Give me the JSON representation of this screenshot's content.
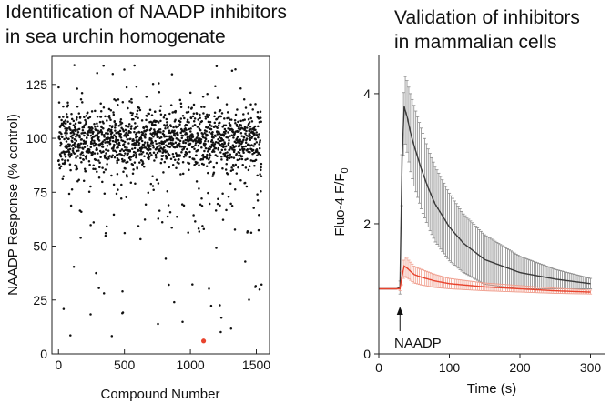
{
  "left_panel": {
    "title_line1": "Identification of NAADP inhibitors",
    "title_line2": "in sea urchin homogenate"
  },
  "right_panel": {
    "title_line1": "Validation of inhibitors",
    "title_line2": "in mammalian cells"
  },
  "chart_data": [
    {
      "type": "scatter",
      "title": "Identification of NAADP inhibitors in sea urchin homogenate",
      "xlabel": "Compound Number",
      "ylabel": "NAADP Response (% control)",
      "xlim": [
        -50,
        1600
      ],
      "ylim": [
        0,
        138
      ],
      "x_ticks": [
        0,
        500,
        1000,
        1500
      ],
      "y_ticks": [
        0,
        25,
        50,
        75,
        100,
        125
      ],
      "grid": false,
      "n_points": 1550,
      "point_color": "#111111",
      "main_cluster": {
        "center": 100,
        "spread": 7
      },
      "range_observed": [
        5,
        136
      ],
      "highlight": {
        "x": 1100,
        "y": 6,
        "color": "#e8432d"
      }
    },
    {
      "type": "line",
      "title": "Validation of inhibitors in mammalian cells",
      "xlabel": "Time (s)",
      "ylabel_main": "Fluo-4 F/F",
      "ylabel_sub": "0",
      "xlim": [
        0,
        320
      ],
      "ylim": [
        0,
        4.6
      ],
      "x_ticks": [
        0,
        100,
        200,
        300
      ],
      "y_ticks": [
        0,
        2,
        4
      ],
      "grid": false,
      "annotation": {
        "text": "NAADP",
        "x": 30
      },
      "series": [
        {
          "color": "#3a3a3a",
          "err_color": "#8a8a8a",
          "x": [
            0,
            25,
            30,
            33,
            36,
            40,
            45,
            50,
            60,
            70,
            80,
            100,
            120,
            150,
            200,
            250,
            300
          ],
          "y": [
            1.0,
            1.0,
            1.02,
            3.0,
            3.8,
            3.65,
            3.4,
            3.2,
            2.85,
            2.55,
            2.3,
            1.95,
            1.7,
            1.45,
            1.25,
            1.15,
            1.08
          ],
          "err": [
            0.08,
            0.08,
            0.1,
            0.45,
            0.5,
            0.55,
            0.6,
            0.62,
            0.62,
            0.6,
            0.58,
            0.52,
            0.45,
            0.38,
            0.25,
            0.15,
            0.08
          ]
        },
        {
          "color": "#e8432d",
          "err_color": "#f0a090",
          "x": [
            0,
            25,
            30,
            33,
            36,
            40,
            45,
            50,
            60,
            80,
            100,
            150,
            200,
            250,
            300
          ],
          "y": [
            1.0,
            1.0,
            1.0,
            1.2,
            1.35,
            1.32,
            1.27,
            1.22,
            1.18,
            1.12,
            1.08,
            1.03,
            1.0,
            0.97,
            0.95
          ],
          "err": [
            0.03,
            0.03,
            0.03,
            0.12,
            0.15,
            0.15,
            0.14,
            0.13,
            0.12,
            0.1,
            0.08,
            0.06,
            0.05,
            0.04,
            0.03
          ]
        }
      ]
    }
  ]
}
